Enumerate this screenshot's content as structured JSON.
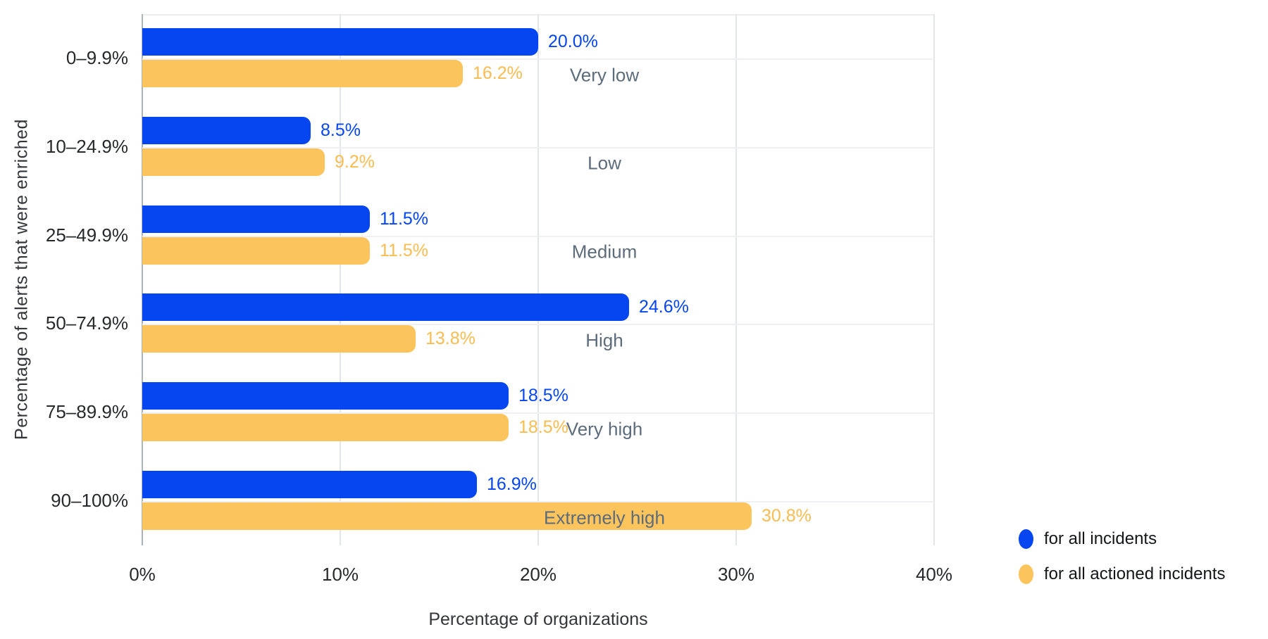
{
  "chart_data": {
    "type": "bar",
    "orientation": "horizontal",
    "xlabel": "Percentage of organizations",
    "ylabel": "Percentage of alerts that were enriched",
    "categories": [
      "0–9.9%",
      "10–24.9%",
      "25–49.9%",
      "50–74.9%",
      "75–89.9%",
      "90–100%"
    ],
    "severity_annotations": [
      "Very low",
      "Low",
      "Medium",
      "High",
      "Very high",
      "Extremely high"
    ],
    "series": [
      {
        "name": "for all incidents",
        "color": "#0546F0",
        "label_color": "#0546F0",
        "values": [
          20.0,
          8.5,
          11.5,
          24.6,
          18.5,
          16.9
        ],
        "labels": [
          "20.0%",
          "8.5%",
          "11.5%",
          "24.6%",
          "18.5%",
          "16.9%"
        ]
      },
      {
        "name": "for all actioned incidents",
        "color": "#FCC45C",
        "label_color": "#F8BC50",
        "values": [
          16.2,
          9.2,
          11.5,
          13.8,
          18.5,
          30.8
        ],
        "labels": [
          "16.2%",
          "9.2%",
          "11.5%",
          "13.8%",
          "18.5%",
          "30.8%"
        ]
      }
    ],
    "x_ticks": [
      "0%",
      "10%",
      "20%",
      "30%",
      "40%"
    ],
    "x_tick_values": [
      0,
      10,
      20,
      30,
      40
    ],
    "xlim": [
      0,
      40
    ],
    "grid": true,
    "legend_position": "bottom-right"
  },
  "colors": {
    "background": "#ffffff",
    "blue_series": "#0546F0",
    "yellow_series": "#FCC45C",
    "severity_text": "#5d6c7b",
    "axis_text": "#27292c",
    "grid_vertical": "#e2e5e9",
    "grid_horizontal": "#eef0f2",
    "axis_line": "#abb3bb"
  }
}
